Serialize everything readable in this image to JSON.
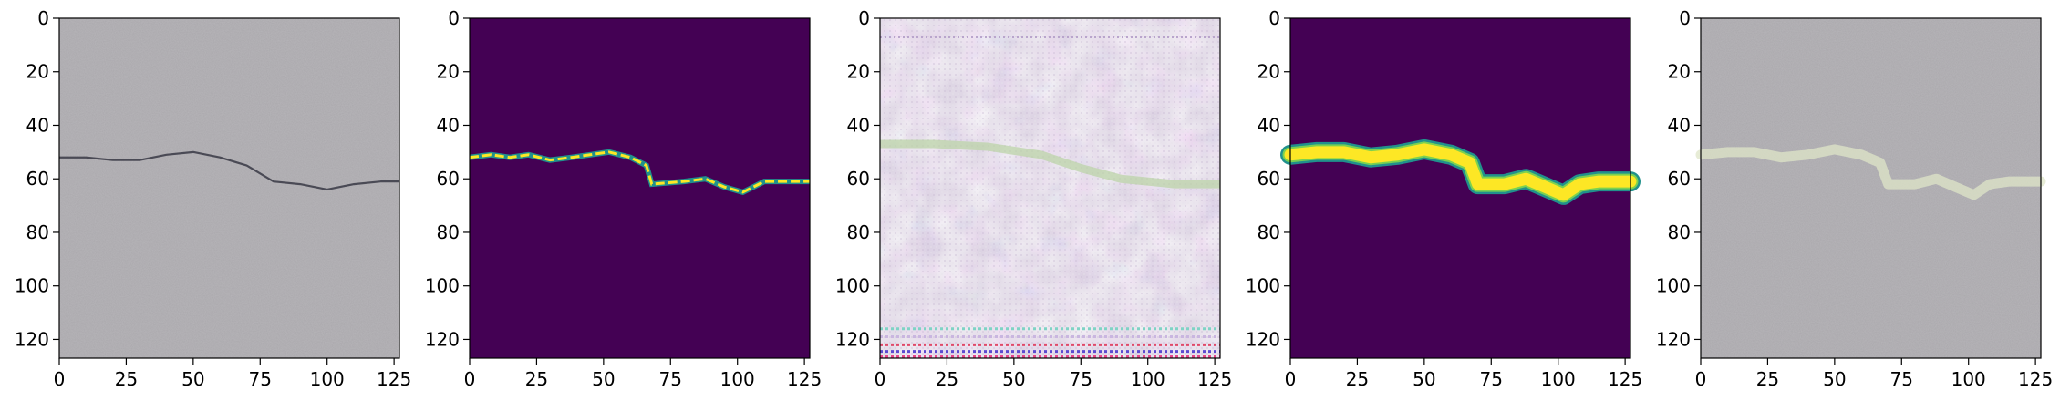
{
  "figure": {
    "panel_count": 5,
    "colors": {
      "axis": "#000000",
      "viridis_background": "#440154",
      "viridis_mid": "#21918c",
      "viridis_high": "#fde725",
      "concrete_gray": "#a9a7ab"
    }
  },
  "chart_data": [
    {
      "type": "heatmap",
      "title": "",
      "content": "input-image",
      "xlim": [
        0,
        127
      ],
      "ylim": [
        127,
        0
      ],
      "xticks": [
        0,
        25,
        50,
        75,
        100,
        125
      ],
      "yticks": [
        0,
        20,
        40,
        60,
        80,
        100,
        120
      ],
      "crack_path": [
        [
          0,
          52
        ],
        [
          10,
          52
        ],
        [
          20,
          53
        ],
        [
          30,
          53
        ],
        [
          40,
          51
        ],
        [
          50,
          50
        ],
        [
          60,
          52
        ],
        [
          70,
          55
        ],
        [
          80,
          61
        ],
        [
          90,
          62
        ],
        [
          100,
          64
        ],
        [
          110,
          62
        ],
        [
          120,
          61
        ],
        [
          127,
          61
        ]
      ]
    },
    {
      "type": "heatmap",
      "title": "",
      "content": "ground-truth-mask",
      "colormap": "viridis",
      "xlim": [
        0,
        127
      ],
      "ylim": [
        127,
        0
      ],
      "xticks": [
        0,
        25,
        50,
        75,
        100,
        125
      ],
      "yticks": [
        0,
        20,
        40,
        60,
        80,
        100,
        120
      ],
      "crack_path": [
        [
          0,
          52
        ],
        [
          8,
          51
        ],
        [
          15,
          52
        ],
        [
          22,
          51
        ],
        [
          30,
          53
        ],
        [
          38,
          52
        ],
        [
          45,
          51
        ],
        [
          52,
          50
        ],
        [
          60,
          52
        ],
        [
          66,
          55
        ],
        [
          68,
          62
        ],
        [
          80,
          61
        ],
        [
          88,
          60
        ],
        [
          95,
          63
        ],
        [
          102,
          65
        ],
        [
          110,
          61
        ],
        [
          120,
          61
        ],
        [
          127,
          61
        ]
      ]
    },
    {
      "type": "heatmap",
      "title": "",
      "content": "reconstructed-image",
      "xlim": [
        0,
        127
      ],
      "ylim": [
        127,
        0
      ],
      "xticks": [
        0,
        25,
        50,
        75,
        100,
        125
      ],
      "yticks": [
        0,
        20,
        40,
        60,
        80,
        100,
        120
      ],
      "crack_path": [
        [
          0,
          47
        ],
        [
          20,
          47
        ],
        [
          40,
          48
        ],
        [
          60,
          51
        ],
        [
          75,
          56
        ],
        [
          90,
          60
        ],
        [
          110,
          62
        ],
        [
          127,
          62
        ]
      ]
    },
    {
      "type": "heatmap",
      "title": "",
      "content": "predicted-mask",
      "colormap": "viridis",
      "xlim": [
        0,
        127
      ],
      "ylim": [
        127,
        0
      ],
      "xticks": [
        0,
        25,
        50,
        75,
        100,
        125
      ],
      "yticks": [
        0,
        20,
        40,
        60,
        80,
        100,
        120
      ],
      "crack_path": [
        [
          0,
          51
        ],
        [
          10,
          50
        ],
        [
          20,
          50
        ],
        [
          30,
          52
        ],
        [
          40,
          51
        ],
        [
          50,
          49
        ],
        [
          60,
          51
        ],
        [
          67,
          54
        ],
        [
          70,
          62
        ],
        [
          80,
          62
        ],
        [
          88,
          60
        ],
        [
          95,
          63
        ],
        [
          102,
          66
        ],
        [
          108,
          62
        ],
        [
          115,
          61
        ],
        [
          127,
          61
        ]
      ]
    },
    {
      "type": "heatmap",
      "title": "",
      "content": "overlay",
      "xlim": [
        0,
        127
      ],
      "ylim": [
        127,
        0
      ],
      "xticks": [
        0,
        25,
        50,
        75,
        100,
        125
      ],
      "yticks": [
        0,
        20,
        40,
        60,
        80,
        100,
        120
      ],
      "crack_path": [
        [
          0,
          51
        ],
        [
          10,
          50
        ],
        [
          20,
          50
        ],
        [
          30,
          52
        ],
        [
          40,
          51
        ],
        [
          50,
          49
        ],
        [
          60,
          51
        ],
        [
          67,
          54
        ],
        [
          70,
          62
        ],
        [
          80,
          62
        ],
        [
          88,
          60
        ],
        [
          95,
          63
        ],
        [
          102,
          66
        ],
        [
          108,
          62
        ],
        [
          115,
          61
        ],
        [
          127,
          61
        ]
      ]
    }
  ]
}
